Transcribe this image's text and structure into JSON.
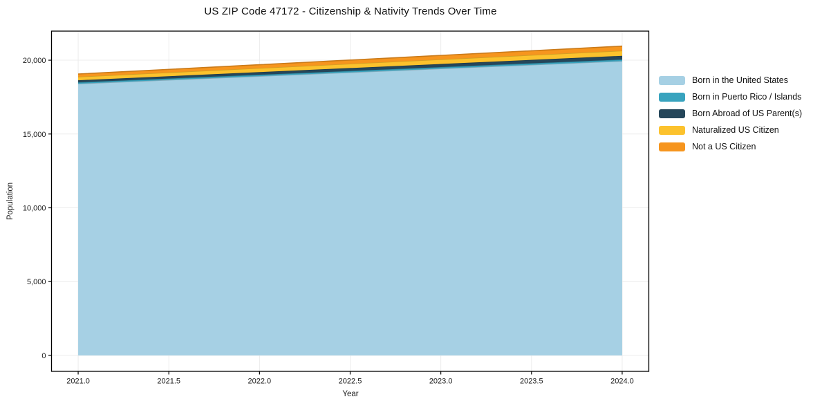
{
  "page": {
    "background": "#ffffff"
  },
  "chart_data": {
    "type": "area",
    "stacked": true,
    "title": "US ZIP Code 47172 - Citizenship & Nativity Trends Over Time",
    "xlabel": "Year",
    "ylabel": "Population",
    "x": [
      2021,
      2022,
      2023,
      2024
    ],
    "series": [
      {
        "name": "Born in the United States",
        "color": "#a6d0e4",
        "values": [
          18405,
          18917,
          19428,
          19940
        ]
      },
      {
        "name": "Born in Puerto Rico / Islands",
        "color": "#38a3be",
        "values": [
          95,
          99,
          104,
          108
        ]
      },
      {
        "name": "Born Abroad of US Parent(s)",
        "color": "#25465a",
        "values": [
          140,
          176,
          212,
          248
        ]
      },
      {
        "name": "Naturalized US Citizen",
        "color": "#fcc22d",
        "values": [
          235,
          272,
          310,
          347
        ]
      },
      {
        "name": "Not a US Citizen",
        "color": "#f6951e",
        "values": [
          190,
          230,
          270,
          310
        ]
      }
    ],
    "totals": {
      "2021": 19065,
      "2024": 20953
    },
    "xlim": [
      2020.853,
      2024.147
    ],
    "ylim": [
      -1080,
      21970
    ],
    "xticks": {
      "values": [
        2021.0,
        2021.5,
        2022.0,
        2022.5,
        2023.0,
        2023.5,
        2024.0
      ],
      "labels": [
        "2021.0",
        "2021.5",
        "2022.0",
        "2022.5",
        "2023.0",
        "2023.5",
        "2024.0"
      ]
    },
    "yticks": {
      "values": [
        0,
        5000,
        10000,
        15000,
        20000
      ],
      "labels": [
        "0",
        "5,000",
        "10,000",
        "15,000",
        "20,000"
      ]
    },
    "grid": true,
    "legend_position": "right",
    "axis_color": "#000000",
    "grid_color": "#ececec"
  }
}
